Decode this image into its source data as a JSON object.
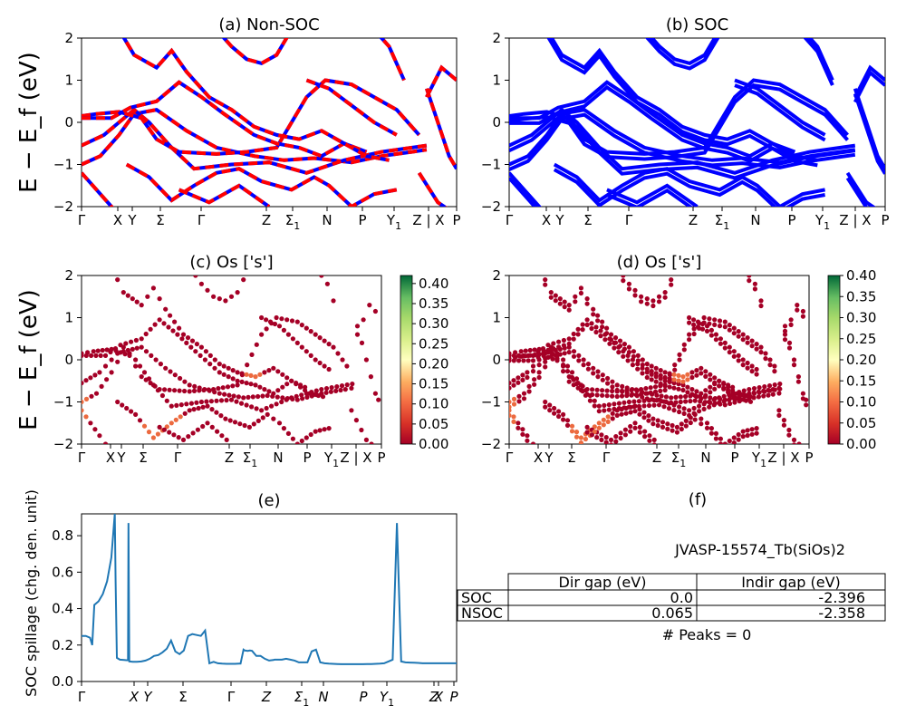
{
  "figure": {
    "ylabel_main": "E − E_f (eV)",
    "table": {
      "title": "JVASP-15574_Tb(SiOs)2",
      "col_headers": [
        "Dir gap (eV)",
        "Indir gap (eV)"
      ],
      "rows": [
        {
          "label": "SOC",
          "dir": "0.0",
          "indir": "-2.396"
        },
        {
          "label": "NSOC",
          "dir": "0.065",
          "indir": "-2.358"
        }
      ],
      "peaks_text": "# Peaks = 0",
      "panel_label": "(f)"
    }
  },
  "chart_data": [
    {
      "id": "a",
      "type": "line",
      "title": "(a) Non-SOC",
      "ylabel": "E − E_f (eV)",
      "ylim": [
        -2,
        2
      ],
      "yticks": [
        -2,
        -1,
        0,
        1,
        2
      ],
      "xticks": [
        "Γ",
        "X",
        "Y",
        "Σ",
        "Γ",
        "Z",
        "Σ1",
        "N",
        "P",
        "Y1",
        "Z | X",
        "P"
      ],
      "series": [
        {
          "color": "#0000ff",
          "style": "solid"
        },
        {
          "color": "#ff0000",
          "style": "dashed"
        }
      ]
    },
    {
      "id": "b",
      "type": "line",
      "title": "(b) SOC",
      "ylim": [
        -2,
        2
      ],
      "yticks": [
        -2,
        -1,
        0,
        1,
        2
      ],
      "xticks": [
        "Γ",
        "X",
        "Y",
        "Σ",
        "Γ",
        "Z",
        "Σ1",
        "N",
        "P",
        "Y1",
        "Z | X",
        "P"
      ],
      "series": [
        {
          "color": "#0000ff",
          "style": "solid"
        }
      ]
    },
    {
      "id": "c",
      "type": "scatter",
      "title": "(c)  Os ['s']",
      "ylabel": "E − E_f (eV)",
      "ylim": [
        -2,
        2
      ],
      "yticks": [
        -2,
        -1,
        0,
        1,
        2
      ],
      "xticks": [
        "Γ",
        "X",
        "Y",
        "Σ",
        "Γ",
        "Z",
        "Σ1",
        "N",
        "P",
        "Y1",
        "Z | X",
        "P"
      ],
      "colorbar": {
        "min": 0.0,
        "max": 0.42,
        "ticks": [
          "0.00",
          "0.05",
          "0.10",
          "0.15",
          "0.20",
          "0.25",
          "0.30",
          "0.35",
          "0.40"
        ],
        "colormap": "RdYlGn"
      }
    },
    {
      "id": "d",
      "type": "scatter",
      "title": "(d) Os ['s']",
      "ylim": [
        -2,
        2
      ],
      "yticks": [
        -2,
        -1,
        0,
        1,
        2
      ],
      "xticks": [
        "Γ",
        "X",
        "Y",
        "Σ",
        "Γ",
        "Z",
        "Σ1",
        "N",
        "P",
        "Y1",
        "Z | X",
        "P"
      ],
      "colorbar": {
        "min": 0.0,
        "max": 0.4,
        "ticks": [
          "0.00",
          "0.05",
          "0.10",
          "0.15",
          "0.20",
          "0.25",
          "0.30",
          "0.35",
          "0.40"
        ],
        "colormap": "RdYlGn"
      }
    },
    {
      "id": "e",
      "type": "line",
      "title": "(e)",
      "ylabel": "SOC spillage (chg. den. unit)",
      "ylim": [
        0,
        0.92
      ],
      "yticks": [
        "0.0",
        "0.2",
        "0.4",
        "0.6",
        "0.8"
      ],
      "xticks": [
        "Γ",
        "X",
        "Y",
        "Σ",
        "Γ",
        "Z",
        "Σ1",
        "N",
        "P",
        "Y1",
        "Z",
        "X",
        "P"
      ],
      "series": [
        {
          "color": "#1f77b4",
          "x": [
            0,
            1,
            2,
            2.5,
            3,
            4,
            5,
            6,
            7,
            7.8,
            8,
            8.3,
            9,
            10,
            10.5,
            10.9,
            11,
            11.2,
            12,
            13,
            14,
            14.4,
            15,
            16,
            17,
            18,
            19,
            20,
            21,
            22,
            23,
            24,
            25,
            26,
            27,
            28,
            29,
            30,
            31,
            32,
            33,
            34,
            35,
            36,
            37,
            37.3,
            38,
            38.3,
            39,
            39.5,
            40,
            41,
            42,
            43,
            44,
            45,
            45.3,
            46,
            47,
            48,
            49,
            50,
            51,
            52,
            53,
            54,
            55,
            56,
            57,
            58,
            59,
            60,
            61,
            62,
            63,
            64,
            65,
            66,
            67,
            68,
            69,
            70,
            71,
            72,
            73,
            74,
            75,
            76,
            77,
            78,
            79,
            80,
            81,
            82,
            83,
            84,
            84.5,
            85,
            85.5,
            86,
            86.5,
            87,
            88
          ],
          "values": [
            0.25,
            0.25,
            0.24,
            0.2,
            0.42,
            0.44,
            0.48,
            0.55,
            0.68,
            0.92,
            0.55,
            0.13,
            0.12,
            0.118,
            0.117,
            0.117,
            0.87,
            0.11,
            0.108,
            0.108,
            0.11,
            0.112,
            0.115,
            0.125,
            0.14,
            0.145,
            0.16,
            0.18,
            0.225,
            0.165,
            0.15,
            0.17,
            0.25,
            0.26,
            0.255,
            0.25,
            0.28,
            0.1,
            0.108,
            0.1,
            0.098,
            0.097,
            0.097,
            0.097,
            0.098,
            0.098,
            0.175,
            0.17,
            0.168,
            0.17,
            0.168,
            0.14,
            0.14,
            0.125,
            0.115,
            0.118,
            0.12,
            0.12,
            0.12,
            0.125,
            0.12,
            0.115,
            0.105,
            0.105,
            0.105,
            0.165,
            0.175,
            0.105,
            0.1,
            0.098,
            0.097,
            0.096,
            0.095,
            0.095,
            0.095,
            0.095,
            0.095,
            0.095,
            0.096,
            0.096,
            0.097,
            0.098,
            0.1,
            0.11,
            0.12,
            0.87,
            0.11,
            0.105,
            0.104,
            0.103,
            0.102,
            0.1,
            0.1,
            0.1,
            0.1,
            0.1,
            0.1,
            0.1,
            0.1,
            0.1,
            0.1,
            0.1,
            0.1
          ]
        }
      ]
    }
  ]
}
